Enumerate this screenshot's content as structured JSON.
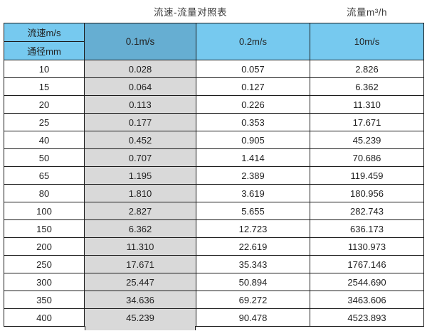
{
  "page": {
    "title_left": "流速-流量对照表",
    "title_right": "流量m³/h"
  },
  "table": {
    "corner_top": "流速m/s",
    "corner_bottom": "通径mm",
    "speed_columns": [
      "0.1m/s",
      "0.2m/s",
      "10m/s"
    ],
    "rows": [
      {
        "dn": "10",
        "v1": "0.028",
        "v2": "0.057",
        "v3": "2.826"
      },
      {
        "dn": "15",
        "v1": "0.064",
        "v2": "0.127",
        "v3": "6.362"
      },
      {
        "dn": "20",
        "v1": "0.113",
        "v2": "0.226",
        "v3": "11.310"
      },
      {
        "dn": "25",
        "v1": "0.177",
        "v2": "0.353",
        "v3": "17.671"
      },
      {
        "dn": "40",
        "v1": "0.452",
        "v2": "0.905",
        "v3": "45.239"
      },
      {
        "dn": "50",
        "v1": "0.707",
        "v2": "1.414",
        "v3": "70.686"
      },
      {
        "dn": "65",
        "v1": "1.195",
        "v2": "2.389",
        "v3": "119.459"
      },
      {
        "dn": "80",
        "v1": "1.810",
        "v2": "3.619",
        "v3": "180.956"
      },
      {
        "dn": "100",
        "v1": "2.827",
        "v2": "5.655",
        "v3": "282.743"
      },
      {
        "dn": "150",
        "v1": "6.362",
        "v2": "12.723",
        "v3": "636.173"
      },
      {
        "dn": "200",
        "v1": "11.310",
        "v2": "22.619",
        "v3": "1130.973"
      },
      {
        "dn": "250",
        "v1": "17.671",
        "v2": "35.343",
        "v3": "1767.146"
      },
      {
        "dn": "300",
        "v1": "25.447",
        "v2": "50.894",
        "v3": "2544.690"
      },
      {
        "dn": "350",
        "v1": "34.636",
        "v2": "69.272",
        "v3": "3463.606"
      },
      {
        "dn": "400",
        "v1": "45.239",
        "v2": "90.478",
        "v3": "4523.893"
      }
    ]
  },
  "colors": {
    "header_blue": "#76c9ef",
    "header_blue_dark": "#66aed2",
    "column_gray": "#d9d9d9",
    "border": "#1b1b1b"
  },
  "chart_data": {
    "type": "table",
    "title": "流速-流量对照表",
    "unit_note": "流量m³/h",
    "row_header_label": "通径mm",
    "column_header_label": "流速m/s",
    "columns": [
      "0.1m/s",
      "0.2m/s",
      "10m/s"
    ],
    "diameters_mm": [
      10,
      15,
      20,
      25,
      40,
      50,
      65,
      80,
      100,
      150,
      200,
      250,
      300,
      350,
      400
    ],
    "series": [
      {
        "name": "0.1m/s",
        "values": [
          0.028,
          0.064,
          0.113,
          0.177,
          0.452,
          0.707,
          1.195,
          1.81,
          2.827,
          6.362,
          11.31,
          17.671,
          25.447,
          34.636,
          45.239
        ]
      },
      {
        "name": "0.2m/s",
        "values": [
          0.057,
          0.127,
          0.226,
          0.353,
          0.905,
          1.414,
          2.389,
          3.619,
          5.655,
          12.723,
          22.619,
          35.343,
          50.894,
          69.272,
          90.478
        ]
      },
      {
        "name": "10m/s",
        "values": [
          2.826,
          6.362,
          11.31,
          17.671,
          45.239,
          70.686,
          119.459,
          180.956,
          282.743,
          636.173,
          1130.973,
          1767.146,
          2544.69,
          3463.606,
          4523.893
        ]
      }
    ]
  }
}
